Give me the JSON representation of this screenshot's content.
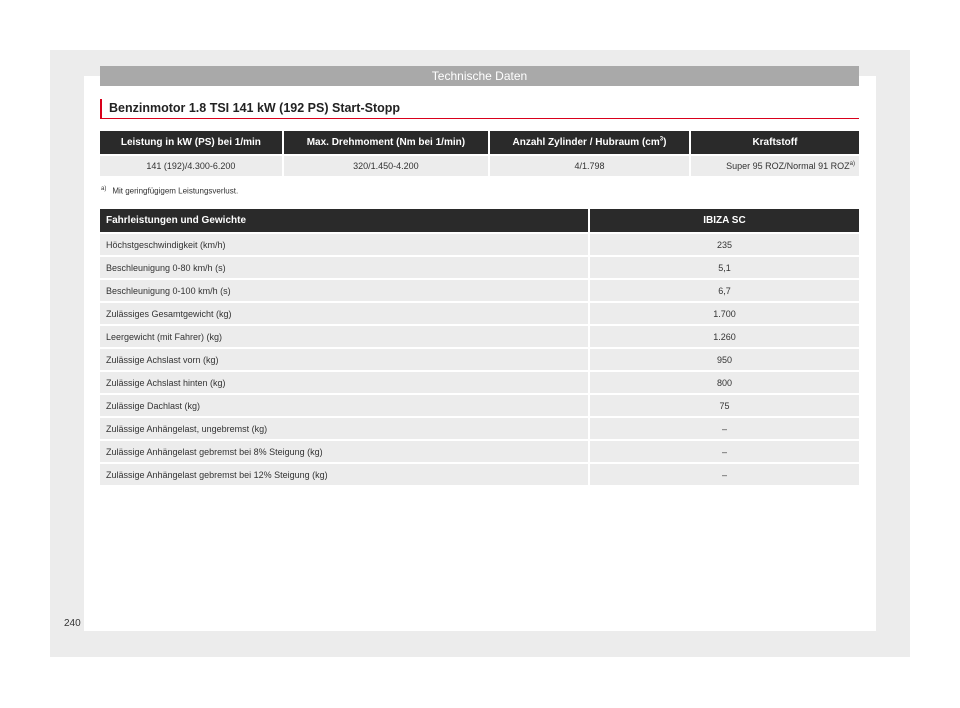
{
  "header": {
    "title": "Technische Daten"
  },
  "section": {
    "title": "Benzinmotor 1.8 TSI 141 kW (192 PS) Start-Stopp"
  },
  "engine_table": {
    "headers": [
      "Leistung in kW (PS) bei 1/min",
      "Max. Drehmoment (Nm bei 1/min)",
      "Anzahl Zylinder / Hubraum (cm",
      "Kraftstoff"
    ],
    "header_sup": "3",
    "header_suffix": ")",
    "row": [
      "141 (192)/4.300-6.200",
      "320/1.450-4.200",
      "4/1.798",
      "Super 95 ROZ/Normal 91 ROZ"
    ],
    "row_sup": "a)"
  },
  "footnote": {
    "mark": "a)",
    "text": "Mit geringfügigem Leistungsverlust."
  },
  "performance_table": {
    "headers": [
      "Fahrleistungen und Gewichte",
      "IBIZA SC"
    ],
    "rows": [
      {
        "label": "Höchstgeschwindigkeit (km/h)",
        "value": "235"
      },
      {
        "label": "Beschleunigung 0-80 km/h (s)",
        "value": "5,1"
      },
      {
        "label": "Beschleunigung 0-100 km/h (s)",
        "value": "6,7"
      },
      {
        "label": "Zulässiges Gesamtgewicht (kg)",
        "value": "1.700"
      },
      {
        "label": "Leergewicht (mit Fahrer) (kg)",
        "value": "1.260"
      },
      {
        "label": "Zulässige Achslast vorn (kg)",
        "value": "950"
      },
      {
        "label": "Zulässige Achslast hinten (kg)",
        "value": "800"
      },
      {
        "label": "Zulässige Dachlast (kg)",
        "value": "75"
      },
      {
        "label": "Zulässige Anhängelast, ungebremst (kg)",
        "value": "–"
      },
      {
        "label": "Zulässige Anhängelast gebremst bei 8% Steigung (kg)",
        "value": "–"
      },
      {
        "label": "Zulässige Anhängelast gebremst bei 12% Steigung (kg)",
        "value": "–"
      }
    ]
  },
  "page_number": "240"
}
